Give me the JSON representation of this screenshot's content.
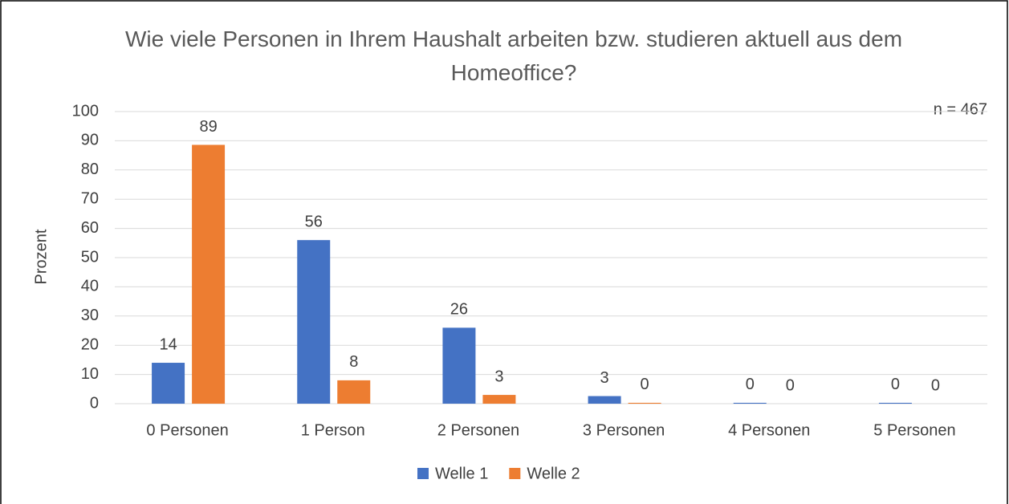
{
  "chart_data": {
    "type": "bar",
    "title": "Wie viele Personen in Ihrem Haushalt arbeiten bzw. studieren aktuell aus dem Homeoffice?",
    "annotation": "n = 467",
    "y_label": "Prozent",
    "categories": [
      "0 Personen",
      "1 Person",
      "2 Personen",
      "3 Personen",
      "4 Personen",
      "5 Personen"
    ],
    "series": [
      {
        "name": "Welle 1",
        "color": "#4472c4",
        "values": [
          14,
          56,
          26,
          2.6,
          0.3,
          0.3
        ],
        "value_labels": [
          "14",
          "56",
          "26",
          "3",
          "0",
          "0"
        ]
      },
      {
        "name": "Welle 2",
        "color": "#ed7d31",
        "values": [
          88.6,
          8,
          3,
          0.3,
          0,
          0
        ],
        "value_labels": [
          "89",
          "8",
          "3",
          "0",
          "0",
          "0"
        ]
      }
    ],
    "ylim": [
      0,
      100
    ],
    "yticks": [
      0,
      10,
      20,
      30,
      40,
      50,
      60,
      70,
      80,
      90,
      100
    ],
    "grid": true,
    "legend": "bottom"
  }
}
